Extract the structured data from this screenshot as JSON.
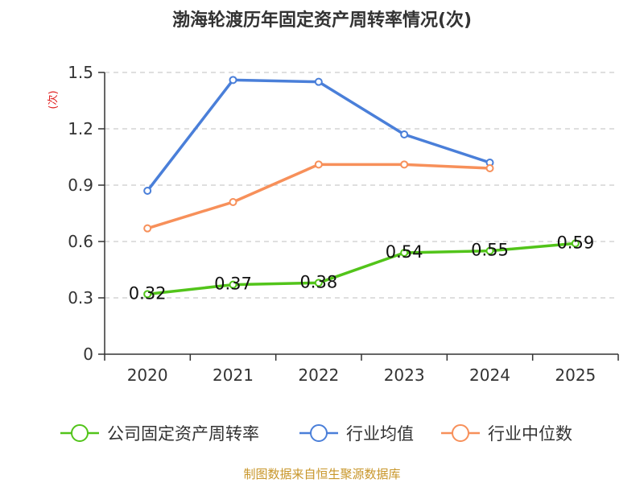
{
  "chart_data": {
    "type": "line",
    "title": "渤海轮渡历年固定资产周转率情况(次)",
    "ylabel": "(次)",
    "xlabel": "",
    "categories": [
      "2020",
      "2021",
      "2022",
      "2023",
      "2024",
      "2025"
    ],
    "y_ticks": [
      "0",
      "0.3",
      "0.6",
      "0.9",
      "1.2",
      "1.5"
    ],
    "ylim": [
      0,
      1.5
    ],
    "grid": true,
    "legend_position": "bottom",
    "series": [
      {
        "name": "公司固定资产周转率",
        "color": "#52c41a",
        "values": [
          0.32,
          0.37,
          0.38,
          0.54,
          0.55,
          0.59
        ],
        "labels": [
          "0.32",
          "0.37",
          "0.38",
          "0.54",
          "0.55",
          "0.59"
        ]
      },
      {
        "name": "行业均值",
        "color": "#4a7fd9",
        "values": [
          0.87,
          1.46,
          1.45,
          1.17,
          1.02,
          null
        ]
      },
      {
        "name": "行业中位数",
        "color": "#f7905a",
        "values": [
          0.67,
          0.81,
          1.01,
          1.01,
          0.99,
          null
        ]
      }
    ],
    "source": "制图数据来自恒生聚源数据库"
  }
}
